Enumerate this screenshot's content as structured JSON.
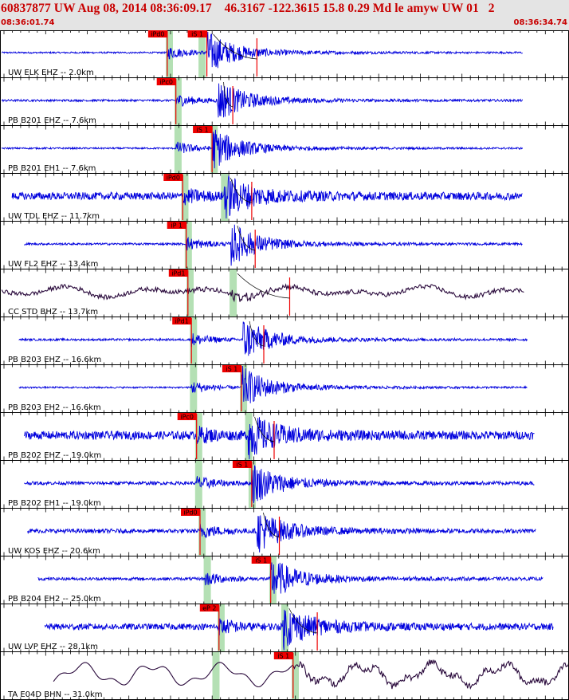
{
  "header": {
    "title": "60837877 UW Aug 08, 2014 08:36:09.17    46.3167 -122.3615 15.8 0.29 Md le amyw UW 01   2",
    "start_time": "08:36:01.74",
    "end_time": "08:36:34.74"
  },
  "colors": {
    "trace": "#0000dd",
    "trace_broadband": "#2a0a3c",
    "pick": "#ee0000",
    "window": "#b4e0b4",
    "header_text": "#c80000"
  },
  "chart_data": {
    "type": "line",
    "time_range_s": [
      0,
      33
    ],
    "traces": [
      {
        "label": "UW ELK EHZ -- 2.0km",
        "color": "trace",
        "start": 0.1,
        "end": 30.3,
        "noise": 0.04,
        "p": 9.7,
        "s": 12.0,
        "amp": 0.9,
        "smooth": 0,
        "picks": [
          {
            "label": "iPd0",
            "t": 9.7
          },
          {
            "label": "iS 1",
            "t": 12.0
          }
        ],
        "windows": [
          9.8,
          11.7
        ],
        "dur": 14.9
      },
      {
        "label": "PB B201 EHZ -- 7.6km",
        "color": "trace",
        "start": 0.1,
        "end": 30.3,
        "noise": 0.05,
        "p": 10.2,
        "s": 12.6,
        "amp": 0.9,
        "smooth": 0,
        "picks": [
          {
            "label": "iPc0",
            "t": 10.2
          }
        ],
        "windows": [
          10.3
        ],
        "dur": 13.5
      },
      {
        "label": "PB B201 EH1 -- 7.6km",
        "color": "trace",
        "start": 0.1,
        "end": 30.3,
        "noise": 0.04,
        "p": 10.2,
        "s": 12.3,
        "amp": 0.9,
        "smooth": 0,
        "picks": [
          {
            "label": "iS 1",
            "t": 12.3
          }
        ],
        "windows": [
          10.3,
          12.4
        ]
      },
      {
        "label": "UW TDL EHZ -- 11.7km",
        "color": "trace",
        "start": 0.7,
        "end": 30.3,
        "noise": 0.18,
        "p": 10.6,
        "s": 13.0,
        "amp": 0.9,
        "smooth": 0,
        "picks": [
          {
            "label": "iPd0",
            "t": 10.6
          }
        ],
        "windows": [
          10.7,
          13.0
        ],
        "dur": 14.6
      },
      {
        "label": "UW FL2 EHZ -- 13.4km",
        "color": "trace",
        "start": 1.4,
        "end": 30.3,
        "noise": 0.05,
        "p": 10.8,
        "s": 13.4,
        "amp": 0.9,
        "smooth": 0,
        "picks": [
          {
            "label": "iP 1",
            "t": 10.8
          }
        ],
        "windows": [
          10.9
        ],
        "dur": 14.8
      },
      {
        "label": "CC STD BHZ -- 13.7km",
        "color": "trace_broadband",
        "start": 0.1,
        "end": 30.4,
        "noise": 0.35,
        "p": 10.9,
        "s": 13.4,
        "amp": 0.55,
        "smooth": 1,
        "picks": [
          {
            "label": "iPd1",
            "t": 10.9
          }
        ],
        "windows": [
          11.0,
          13.5
        ],
        "dur": 16.8
      },
      {
        "label": "PB B203 EHZ -- 16.6km",
        "color": "trace",
        "start": 1.1,
        "end": 30.6,
        "noise": 0.05,
        "p": 11.1,
        "s": 14.1,
        "amp": 0.9,
        "smooth": 0,
        "picks": [
          {
            "label": "iPd1",
            "t": 11.1
          }
        ],
        "windows": [
          11.2
        ],
        "dur": 15.3
      },
      {
        "label": "PB B203 EH2 -- 16.6km",
        "color": "trace",
        "start": 1.1,
        "end": 30.6,
        "noise": 0.04,
        "p": 11.1,
        "s": 14.0,
        "amp": 0.9,
        "smooth": 0,
        "picks": [
          {
            "label": "iS 1",
            "t": 14.0
          }
        ],
        "windows": [
          11.2,
          14.1
        ]
      },
      {
        "label": "PB B202 EHZ -- 19.0km",
        "color": "trace",
        "start": 1.4,
        "end": 31.0,
        "noise": 0.2,
        "p": 11.4,
        "s": 14.4,
        "amp": 0.9,
        "smooth": 0,
        "picks": [
          {
            "label": "iPc0",
            "t": 11.4
          }
        ],
        "windows": [
          11.5,
          14.4
        ],
        "dur": 15.9
      },
      {
        "label": "PB B202 EH1 -- 19.0km",
        "color": "trace",
        "start": 1.4,
        "end": 31.0,
        "noise": 0.08,
        "p": 11.4,
        "s": 14.6,
        "amp": 0.9,
        "smooth": 0,
        "picks": [
          {
            "label": "iS 1",
            "t": 14.6
          }
        ],
        "windows": [
          11.5,
          14.6
        ]
      },
      {
        "label": "UW KOS EHZ -- 20.6km",
        "color": "trace",
        "start": 1.6,
        "end": 31.1,
        "noise": 0.1,
        "p": 11.6,
        "s": 14.9,
        "amp": 0.9,
        "smooth": 0,
        "picks": [
          {
            "label": "iPd0",
            "t": 11.6
          }
        ],
        "windows": [
          11.7
        ],
        "dur": 16.2
      },
      {
        "label": "PB B204 EH2 -- 25.0km",
        "color": "trace",
        "start": 2.2,
        "end": 31.5,
        "noise": 0.07,
        "p": 11.9,
        "s": 15.7,
        "amp": 0.9,
        "smooth": 0,
        "picks": [
          {
            "label": "iS 1",
            "t": 15.7
          }
        ],
        "windows": [
          12.0,
          15.8
        ]
      },
      {
        "label": "UW LVP EHZ -- 28.1km",
        "color": "trace",
        "start": 2.6,
        "end": 32.1,
        "noise": 0.15,
        "p": 12.7,
        "s": 16.4,
        "amp": 0.9,
        "smooth": 0,
        "picks": [
          {
            "label": "eP 2",
            "t": 12.7
          }
        ],
        "windows": [
          12.8,
          16.5
        ],
        "dur": 18.4
      },
      {
        "label": "TA E04D BHN -- 31.0km",
        "color": "trace_broadband",
        "start": 3.1,
        "end": 33.0,
        "noise": 0.6,
        "p": 12.4,
        "s": 17.0,
        "amp": 0.35,
        "smooth": 2,
        "picks": [
          {
            "label": "iS 1",
            "t": 17.0
          }
        ],
        "windows": [
          12.5,
          17.1
        ]
      }
    ]
  }
}
